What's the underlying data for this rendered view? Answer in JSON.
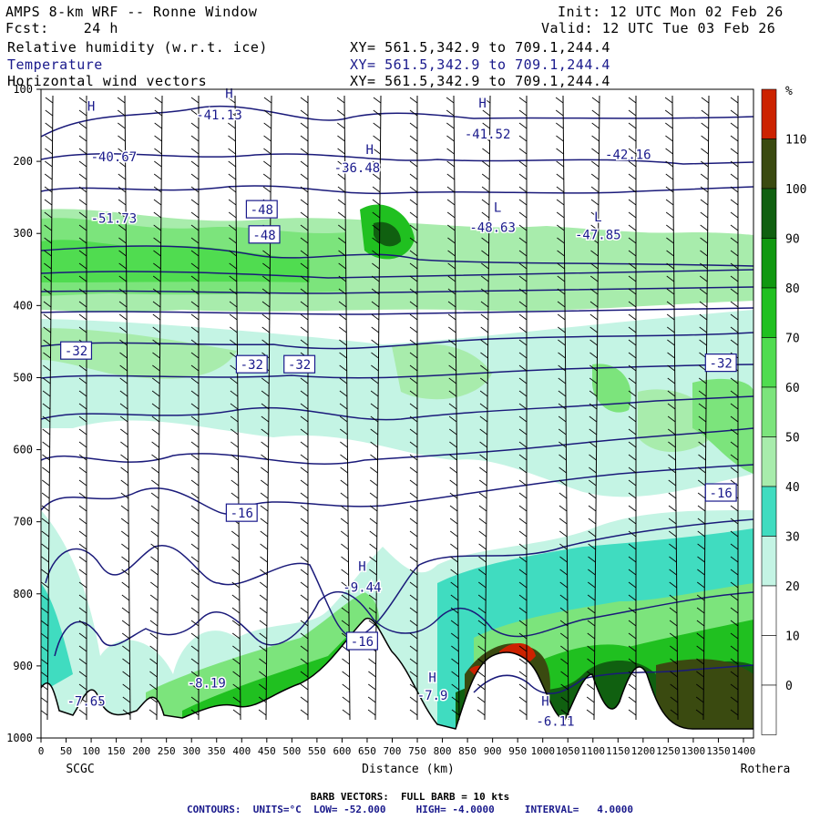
{
  "header": {
    "title_left": "AMPS 8-km WRF -- Ronne Window",
    "fcst": "Fcst:    24 h",
    "init": "Init: 12 UTC Mon 02 Feb 26",
    "valid": "Valid: 12 UTC Tue 03 Feb 26",
    "fields": [
      {
        "name": "Relative humidity (w.r.t. ice)",
        "xy": "XY= 561.5,342.9 to 709.1,244.4",
        "color": "#000000"
      },
      {
        "name": "Temperature",
        "xy": "XY= 561.5,342.9 to 709.1,244.4",
        "color": "#1a1a8c"
      },
      {
        "name": "Horizontal wind vectors",
        "xy": "XY= 561.5,342.9 to 709.1,244.4",
        "color": "#000000"
      }
    ]
  },
  "axes": {
    "xlabel": "Distance (km)",
    "left_station": "SCGC",
    "right_station": "Rothera",
    "x_ticks": [
      "0",
      "50",
      "100",
      "150",
      "200",
      "250",
      "300",
      "350",
      "400",
      "450",
      "500",
      "550",
      "600",
      "650",
      "700",
      "750",
      "800",
      "850",
      "900",
      "950",
      "1000",
      "1050",
      "1100",
      "1150",
      "1200",
      "1250",
      "1300",
      "1350",
      "1400"
    ],
    "x_range": [
      0,
      1420
    ],
    "y_ticks": [
      "100",
      "200",
      "300",
      "400",
      "500",
      "600",
      "700",
      "800",
      "900",
      "1000"
    ],
    "y_range": [
      100,
      1000
    ]
  },
  "colorbar": {
    "unit": "%",
    "labels": [
      "110",
      "100",
      "90",
      "80",
      "70",
      "60",
      "50",
      "40",
      "30",
      "20",
      "10",
      "0"
    ],
    "colors": [
      "#cc2200",
      "#3a4a10",
      "#106010",
      "#109810",
      "#20c020",
      "#50dc50",
      "#7ce47c",
      "#a8ecac",
      "#40dcc0",
      "#c4f4e4",
      "#ffffff",
      "#ffffff",
      "#ffffff"
    ]
  },
  "temp_labels": [
    {
      "text": "H",
      "km": 100,
      "p": 130
    },
    {
      "text": "-40.67",
      "km": 145,
      "p": 200
    },
    {
      "text": "H",
      "km": 375,
      "p": 112
    },
    {
      "text": "-41.13",
      "km": 355,
      "p": 142
    },
    {
      "text": "H",
      "km": 880,
      "p": 125
    },
    {
      "text": "-41.52",
      "km": 890,
      "p": 168
    },
    {
      "text": "H",
      "km": 655,
      "p": 190
    },
    {
      "text": "-36.48",
      "km": 630,
      "p": 215
    },
    {
      "text": "-42.16",
      "km": 1170,
      "p": 197
    },
    {
      "text": "-51.73",
      "km": 145,
      "p": 285
    },
    {
      "text": "L",
      "km": 910,
      "p": 270
    },
    {
      "text": "-48.63",
      "km": 900,
      "p": 298
    },
    {
      "text": "L",
      "km": 1110,
      "p": 283
    },
    {
      "text": "-47.85",
      "km": 1110,
      "p": 308
    },
    {
      "text": "H",
      "km": 640,
      "p": 768
    },
    {
      "text": "-9.44",
      "km": 640,
      "p": 797
    },
    {
      "text": "-8.19",
      "km": 330,
      "p": 930
    },
    {
      "text": "-7.65",
      "km": 90,
      "p": 955
    },
    {
      "text": "H",
      "km": 780,
      "p": 922
    },
    {
      "text": "-7.9",
      "km": 780,
      "p": 947
    },
    {
      "text": "H",
      "km": 1005,
      "p": 955
    },
    {
      "text": "-6.11",
      "km": 1025,
      "p": 983
    }
  ],
  "boxed_labels": [
    {
      "text": "-48",
      "km": 440,
      "p": 267
    },
    {
      "text": "-48",
      "km": 445,
      "p": 302
    },
    {
      "text": "-32",
      "km": 70,
      "p": 463
    },
    {
      "text": "-32",
      "km": 420,
      "p": 482
    },
    {
      "text": "-32",
      "km": 515,
      "p": 482
    },
    {
      "text": "-32",
      "km": 1355,
      "p": 480
    },
    {
      "text": "-16",
      "km": 400,
      "p": 688
    },
    {
      "text": "-16",
      "km": 1355,
      "p": 660
    },
    {
      "text": "-16",
      "km": 640,
      "p": 866
    }
  ],
  "footer": {
    "barb": "BARB VECTORS:  FULL BARB = 10 kts",
    "contours": "CONTOURS:  UNITS=°C  LOW= -52.000     HIGH= -4.0000     INTERVAL=   4.0000"
  }
}
